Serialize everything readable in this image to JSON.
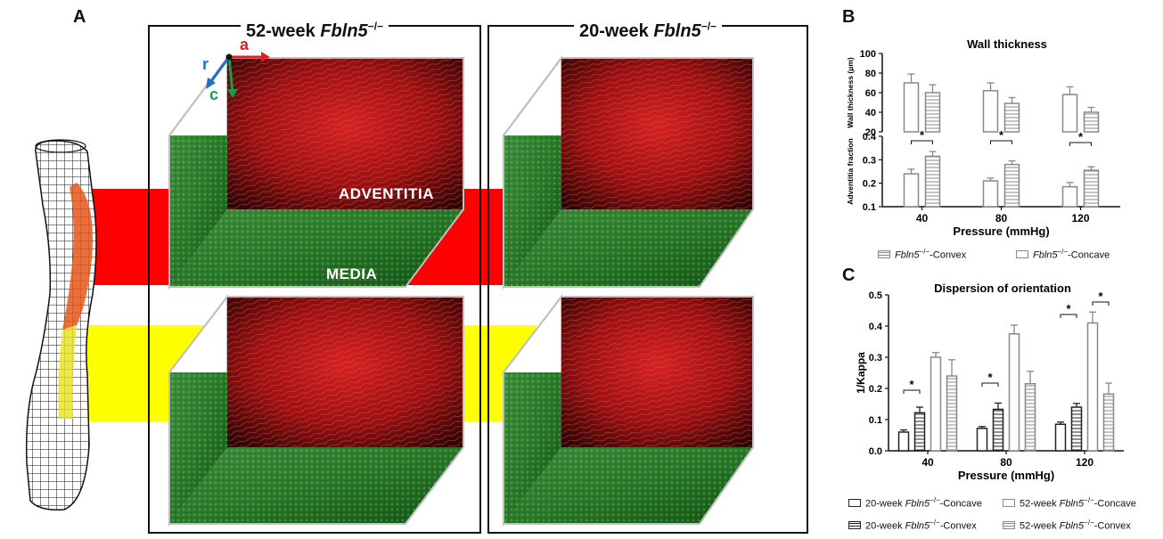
{
  "panel_a": {
    "letter": "A",
    "frame1": {
      "prefix": "52-week ",
      "gene": "Fbln5",
      "sup": "−/−"
    },
    "frame2": {
      "prefix": "20-week ",
      "gene": "Fbln5",
      "sup": "−/−"
    },
    "axes": {
      "a": "a",
      "r": "r",
      "c": "c"
    },
    "layer_labels": {
      "adventitia": "ADVENTITIA",
      "media": "MEDIA"
    },
    "colors": {
      "red_band": "#ff0000",
      "yellow_band": "#ffff00",
      "adventitia_stain": "#c01818",
      "media_stain": "#2e7d32"
    }
  },
  "panel_b": {
    "letter": "B",
    "title": "Wall thickness",
    "legend": [
      {
        "prefix": "",
        "gene": "Fbln5",
        "sup": "−/−",
        "suffix": "-Convex"
      },
      {
        "prefix": "",
        "gene": "Fbln5",
        "sup": "−/−",
        "suffix": "-Concave"
      }
    ]
  },
  "panel_c": {
    "letter": "C",
    "title": "Dispersion of orientation",
    "legend": [
      {
        "prefix": "20-week ",
        "gene": "Fbln5",
        "sup": "−/−",
        "suffix": "-Concave"
      },
      {
        "prefix": "52-week ",
        "gene": "Fbln5",
        "sup": "−/−",
        "suffix": "-Concave"
      },
      {
        "prefix": "20-week ",
        "gene": "Fbln5",
        "sup": "−/−",
        "suffix": "-Convex"
      },
      {
        "prefix": "52-week ",
        "gene": "Fbln5",
        "sup": "−/−",
        "suffix": "-Convex"
      }
    ]
  },
  "chart_data": [
    {
      "type": "bar",
      "title": "Wall thickness",
      "xlabel": "Pressure (mmHg)",
      "ylabel": "Wall thickness (μm)",
      "categories": [
        "40",
        "80",
        "120"
      ],
      "ylim": [
        20,
        100
      ],
      "yticks": [
        "20",
        "40",
        "60",
        "80",
        "100"
      ],
      "series": [
        {
          "name": "Fbln5−/−-Concave",
          "values": [
            70,
            62,
            58
          ],
          "errors": [
            9,
            8,
            8
          ],
          "color": "#888888",
          "hatch": false
        },
        {
          "name": "Fbln5−/−-Convex",
          "values": [
            60,
            49,
            40
          ],
          "errors": [
            8,
            6,
            5
          ],
          "color": "#888888",
          "hatch": true
        }
      ],
      "annotations": []
    },
    {
      "type": "bar",
      "xlabel": "Pressure (mmHg)",
      "ylabel": "Adventitia fraction",
      "categories": [
        "40",
        "80",
        "120"
      ],
      "ylim": [
        0.1,
        0.4
      ],
      "yticks": [
        "0.1",
        "0.2",
        "0.3",
        "0.4"
      ],
      "series": [
        {
          "name": "Fbln5−/−-Concave",
          "values": [
            0.24,
            0.21,
            0.185
          ],
          "errors": [
            0.02,
            0.012,
            0.018
          ],
          "color": "#888888",
          "hatch": false
        },
        {
          "name": "Fbln5−/−-Convex",
          "values": [
            0.315,
            0.28,
            0.255
          ],
          "errors": [
            0.02,
            0.015,
            0.015
          ],
          "color": "#888888",
          "hatch": true
        }
      ],
      "annotations": [
        "*",
        "*",
        "*"
      ]
    },
    {
      "type": "bar",
      "title": "Dispersion of orientation",
      "xlabel": "Pressure (mmHg)",
      "ylabel": "1/Kappa",
      "categories": [
        "40",
        "80",
        "120"
      ],
      "ylim": [
        0,
        0.5
      ],
      "yticks": [
        "0.0",
        "0.1",
        "0.2",
        "0.3",
        "0.4",
        "0.5"
      ],
      "series": [
        {
          "name": "20-week Fbln5−/−-Concave",
          "values": [
            0.06,
            0.072,
            0.085
          ],
          "errors": [
            0.007,
            0.006,
            0.007
          ],
          "color": "#222222",
          "hatch": false
        },
        {
          "name": "20-week Fbln5−/−-Convex",
          "values": [
            0.122,
            0.133,
            0.14
          ],
          "errors": [
            0.018,
            0.02,
            0.012
          ],
          "color": "#222222",
          "hatch": true
        },
        {
          "name": "52-week Fbln5−/−-Concave",
          "values": [
            0.3,
            0.375,
            0.41
          ],
          "errors": [
            0.015,
            0.028,
            0.035
          ],
          "color": "#888888",
          "hatch": false
        },
        {
          "name": "52-week Fbln5−/−-Convex",
          "values": [
            0.24,
            0.215,
            0.182
          ],
          "errors": [
            0.052,
            0.04,
            0.035
          ],
          "color": "#888888",
          "hatch": true
        }
      ],
      "annotations": [
        "*",
        "*",
        "*"
      ]
    }
  ]
}
